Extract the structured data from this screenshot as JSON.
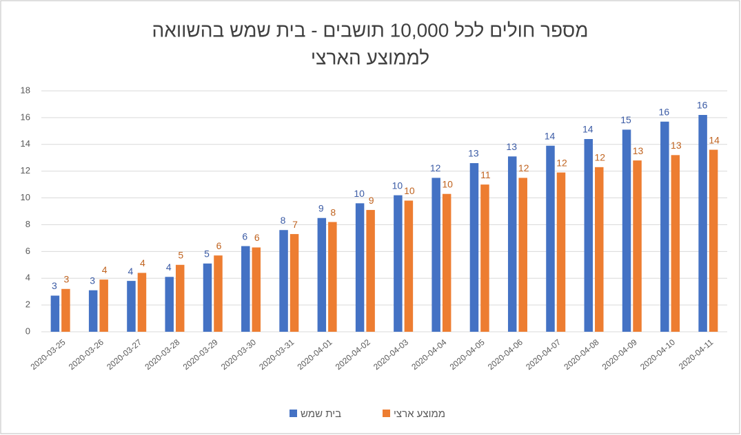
{
  "chart_data": {
    "type": "bar",
    "title": [
      "מספר חולים לכל 10,000 תושבים - בית שמש בהשוואה",
      "לממוצע הארצי"
    ],
    "categories": [
      "2020-03-25",
      "2020-03-26",
      "2020-03-27",
      "2020-03-28",
      "2020-03-29",
      "2020-03-30",
      "2020-03-31",
      "2020-04-01",
      "2020-04-02",
      "2020-04-03",
      "2020-04-04",
      "2020-04-05",
      "2020-04-06",
      "2020-04-07",
      "2020-04-08",
      "2020-04-09",
      "2020-04-10",
      "2020-04-11"
    ],
    "series": [
      {
        "name": "בית שמש",
        "color": "#4472c4",
        "values": [
          2.7,
          3.1,
          3.8,
          4.1,
          5.1,
          6.4,
          7.6,
          8.5,
          9.6,
          10.2,
          11.5,
          12.6,
          13.1,
          13.9,
          14.4,
          15.1,
          15.7,
          16.2
        ],
        "value_labels": [
          "3",
          "3",
          "4",
          "4",
          "5",
          "6",
          "8",
          "9",
          "10",
          "10",
          "12",
          "13",
          "13",
          "14",
          "14",
          "15",
          "16",
          "16"
        ]
      },
      {
        "name": "ממוצע ארצי",
        "color": "#ed7d31",
        "values": [
          3.2,
          3.9,
          4.4,
          5.0,
          5.7,
          6.3,
          7.3,
          8.2,
          9.1,
          9.8,
          10.3,
          11.0,
          11.5,
          11.9,
          12.3,
          12.8,
          13.2,
          13.6
        ],
        "value_labels": [
          "3",
          "4",
          "4",
          "5",
          "6",
          "6",
          "7",
          "8",
          "9",
          "10",
          "10",
          "11",
          "12",
          "12",
          "12",
          "13",
          "13",
          "14"
        ]
      }
    ],
    "ylim": [
      0,
      18
    ],
    "yticks": [
      0,
      2,
      4,
      6,
      8,
      10,
      12,
      14,
      16,
      18
    ],
    "grid": true,
    "legend": "bottom"
  }
}
